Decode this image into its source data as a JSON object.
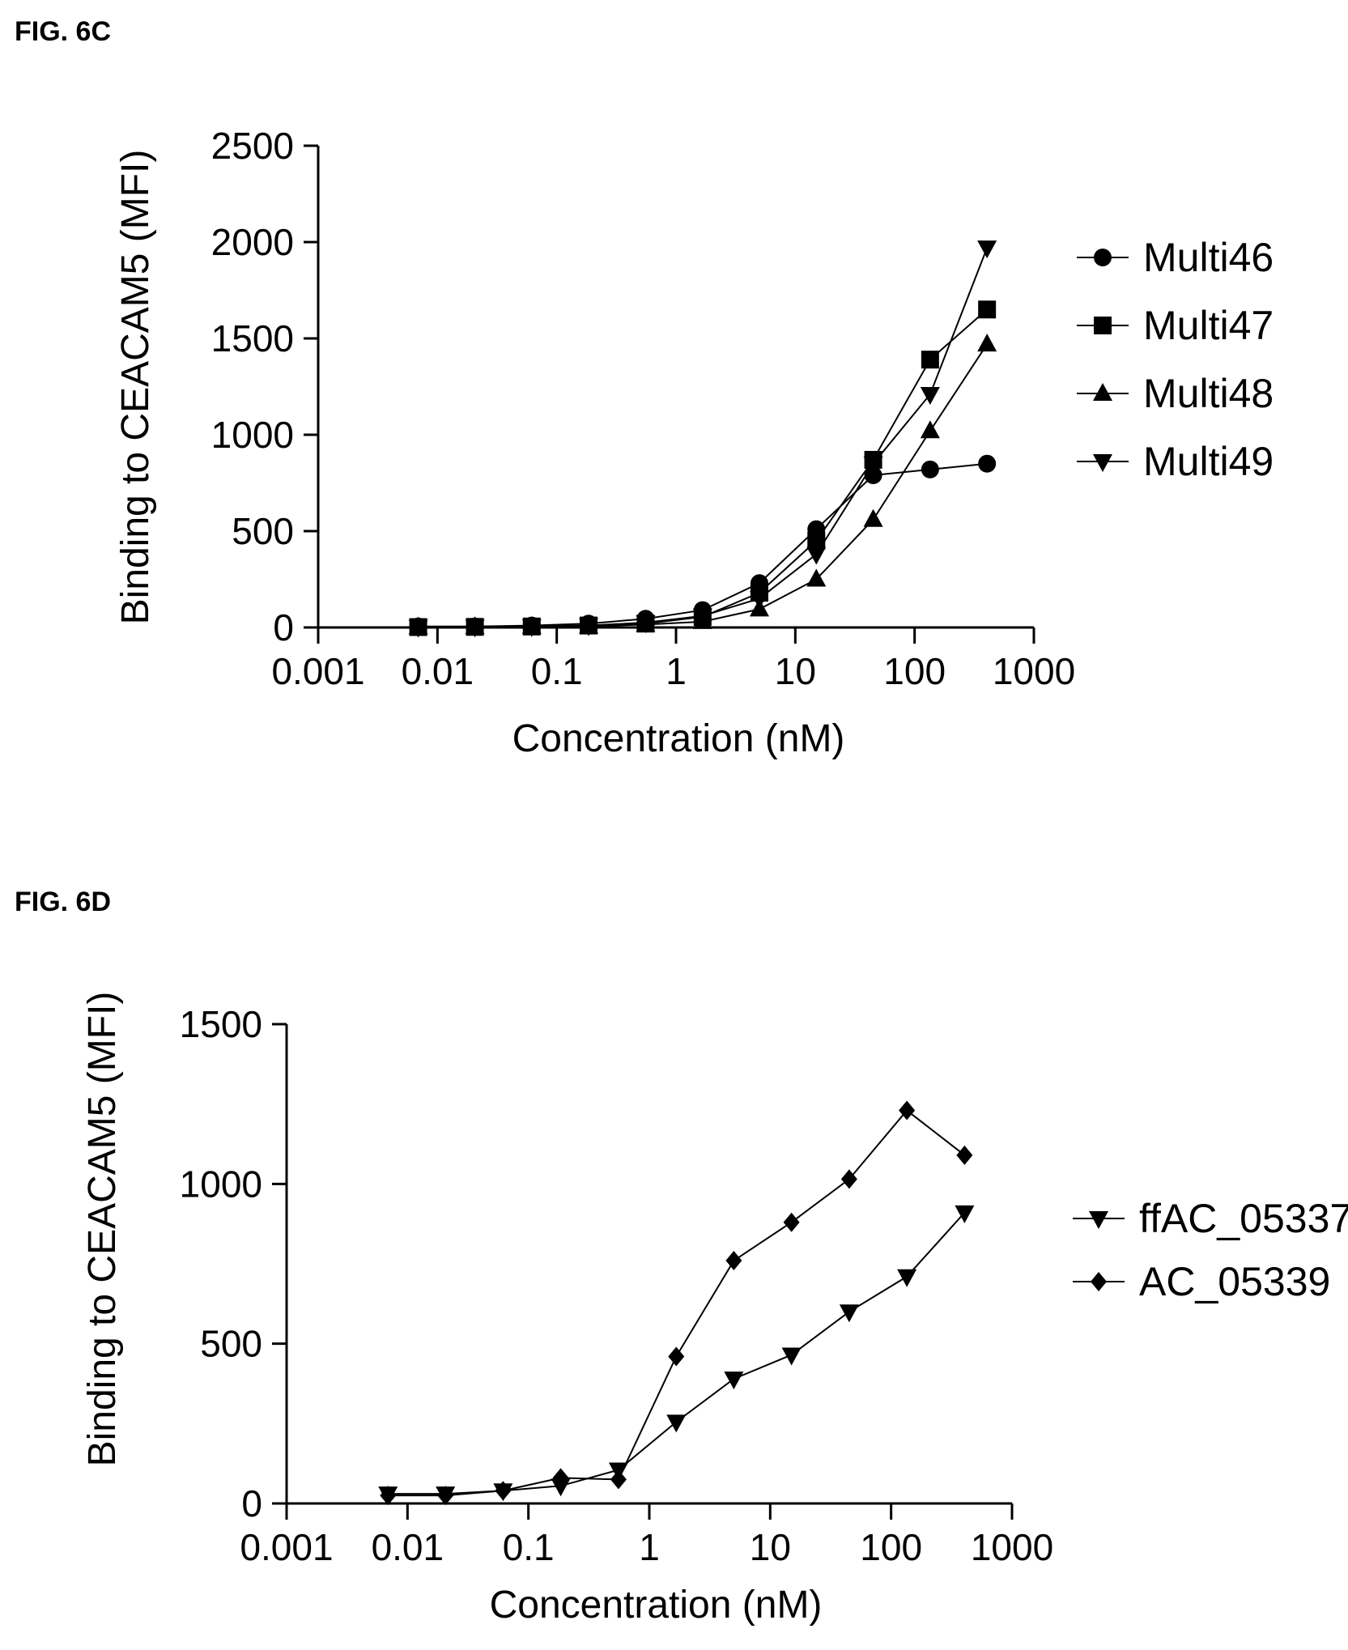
{
  "chart_data": [
    {
      "figure_label": "FIG. 6C",
      "type": "line",
      "xlabel": "Concentration (nM)",
      "ylabel": "Binding to CEACAM5 (MFI)",
      "xscale": "log",
      "xlim": [
        0.001,
        1000
      ],
      "ylim": [
        0,
        2500
      ],
      "xticks": [
        0.001,
        0.01,
        0.1,
        1,
        10,
        100,
        1000
      ],
      "xtick_labels": [
        "0.001",
        "0.01",
        "0.1",
        "1",
        "10",
        "100",
        "1000"
      ],
      "yticks": [
        0,
        500,
        1000,
        1500,
        2000,
        2500
      ],
      "ytick_labels": [
        "0",
        "500",
        "1000",
        "1500",
        "2000",
        "2500"
      ],
      "legend_position": "right",
      "x": [
        0.0069,
        0.0206,
        0.0617,
        0.185,
        0.556,
        1.67,
        5,
        15,
        45,
        135,
        405
      ],
      "series": [
        {
          "name": "Multi46",
          "marker": "circle",
          "values": [
            5,
            5,
            10,
            20,
            45,
            90,
            230,
            510,
            790,
            820,
            850
          ]
        },
        {
          "name": "Multi47",
          "marker": "square",
          "values": [
            2,
            3,
            5,
            10,
            20,
            55,
            180,
            450,
            870,
            1390,
            1650
          ]
        },
        {
          "name": "Multi48",
          "marker": "triangle-up",
          "values": [
            2,
            3,
            4,
            6,
            15,
            30,
            95,
            250,
            560,
            1020,
            1470
          ]
        },
        {
          "name": "Multi49",
          "marker": "triangle-down",
          "values": [
            2,
            3,
            5,
            10,
            25,
            60,
            150,
            380,
            850,
            1210,
            1970
          ]
        }
      ]
    },
    {
      "figure_label": "FIG. 6D",
      "type": "line",
      "xlabel": "Concentration (nM)",
      "ylabel": "Binding to CEACAM5 (MFI)",
      "xscale": "log",
      "xlim": [
        0.001,
        1000
      ],
      "ylim": [
        0,
        1500
      ],
      "xticks": [
        0.001,
        0.01,
        0.1,
        1,
        10,
        100,
        1000
      ],
      "xtick_labels": [
        "0.001",
        "0.01",
        "0.1",
        "1",
        "10",
        "100",
        "1000"
      ],
      "yticks": [
        0,
        500,
        1000,
        1500
      ],
      "ytick_labels": [
        "0",
        "500",
        "1000",
        "1500"
      ],
      "legend_position": "right",
      "x": [
        0.0069,
        0.0206,
        0.0617,
        0.185,
        0.556,
        1.67,
        5,
        15,
        45,
        135,
        405
      ],
      "series": [
        {
          "name": "ffAC_05337",
          "marker": "triangle-down",
          "values": [
            30,
            30,
            40,
            55,
            105,
            255,
            390,
            465,
            600,
            710,
            910
          ]
        },
        {
          "name": "AC_05339",
          "marker": "diamond",
          "values": [
            25,
            25,
            40,
            80,
            75,
            460,
            760,
            880,
            1015,
            1230,
            1090
          ]
        }
      ]
    }
  ]
}
